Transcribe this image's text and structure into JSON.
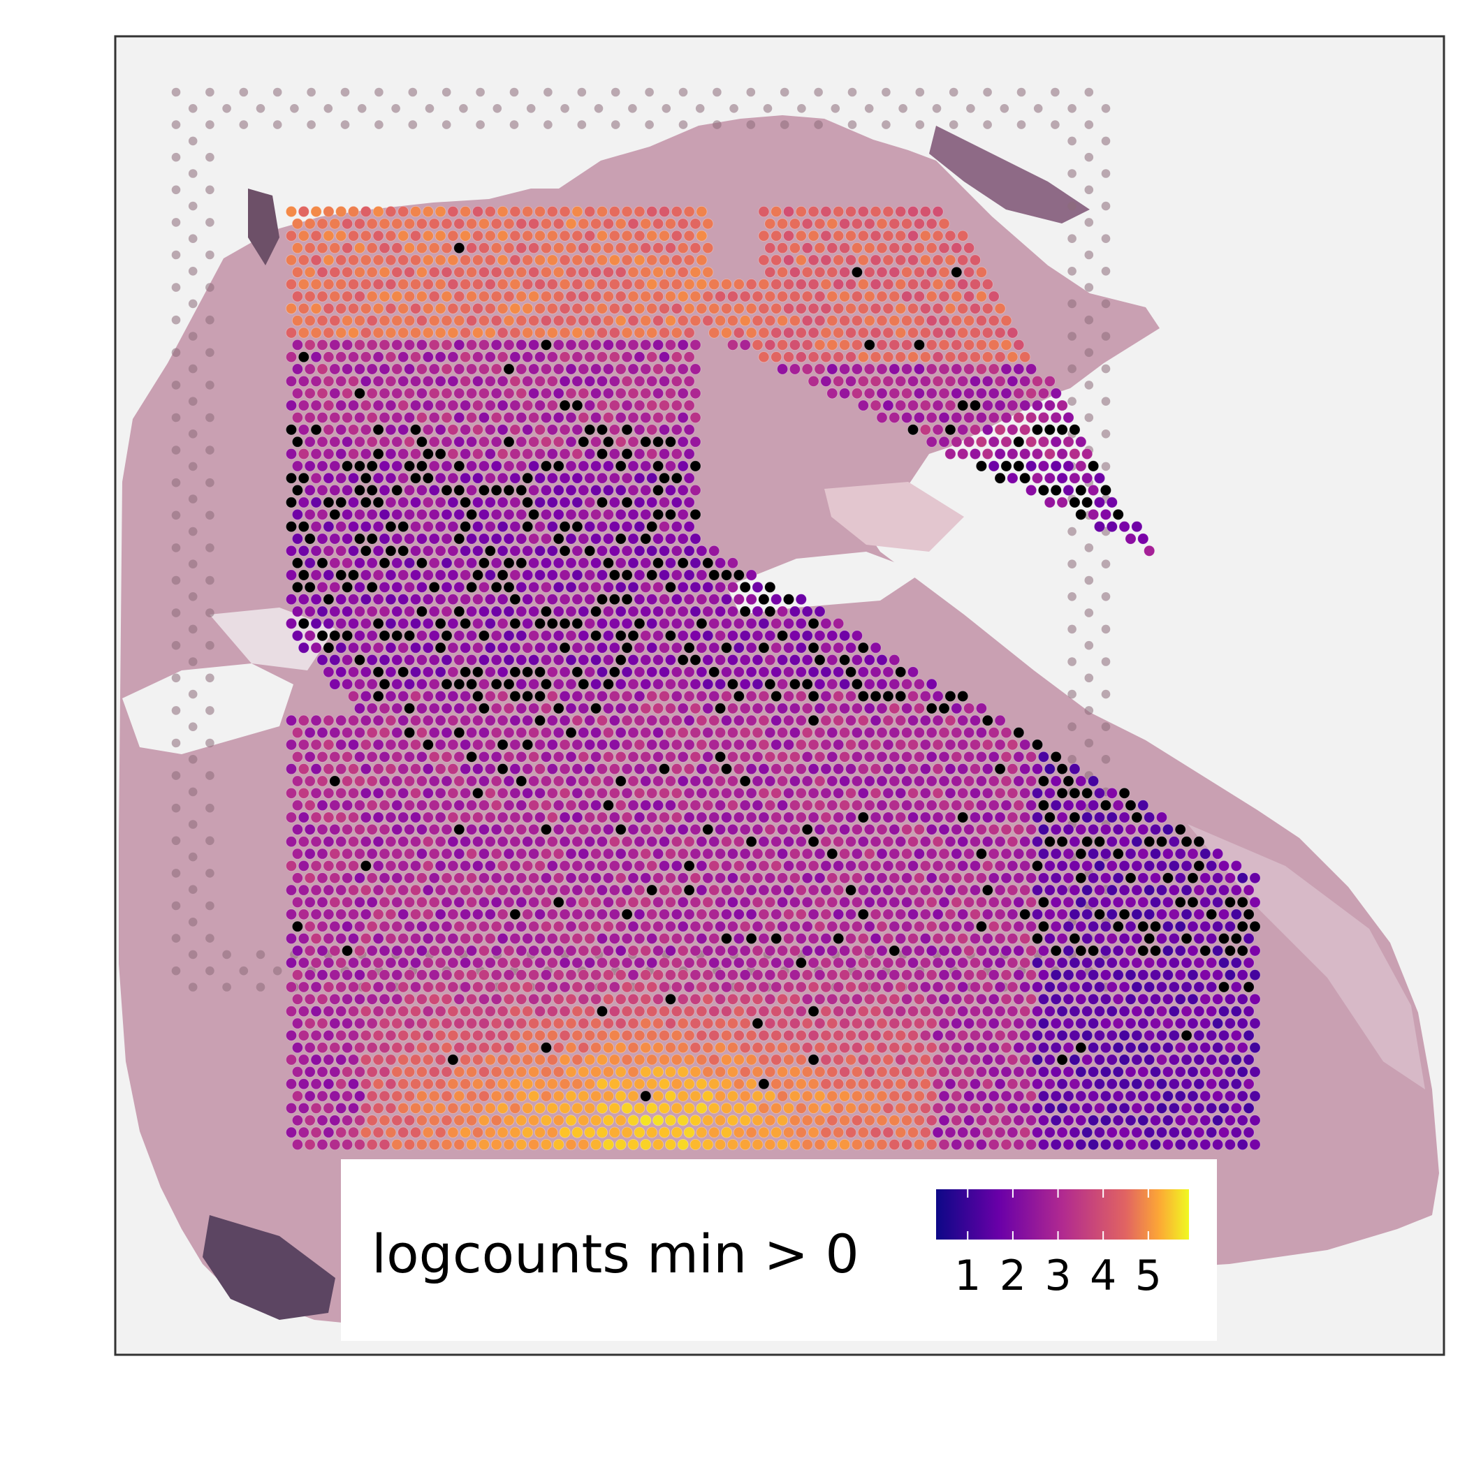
{
  "chart_data": {
    "type": "scatter",
    "title": "",
    "xlabel": "",
    "ylabel": "",
    "colorbar": {
      "label": "logcounts min > 0",
      "colormap": "plasma",
      "range": [
        0.3,
        5.9
      ],
      "ticks": [
        "1",
        "2",
        "3",
        "4",
        "5"
      ],
      "tick_values": [
        1,
        2,
        3,
        4,
        5
      ]
    },
    "na_color": "#000000",
    "fiducial_color": "#8d6c7a",
    "tissue_colors": [
      "#c9a0b2",
      "#a87fa0",
      "#8e6a86",
      "#f2f2f2"
    ],
    "spatial_grid": {
      "cols": 78,
      "rows": 78,
      "note_hex_offset": true
    },
    "value_field": {
      "base": 2.4,
      "hotspot_bottom": {
        "peak": 5.4,
        "col_range": [
          12,
          45
        ],
        "row_from": 62
      },
      "warm_top": {
        "value": 3.9,
        "row_to": 10
      },
      "warm_top_right": {
        "value": 3.7,
        "col_range": [
          37,
          66
        ],
        "row_to": 12
      },
      "cool_right": {
        "value": 1.4,
        "col_from": 60,
        "row_from": 34
      },
      "zero_fraction": 0.14
    }
  }
}
